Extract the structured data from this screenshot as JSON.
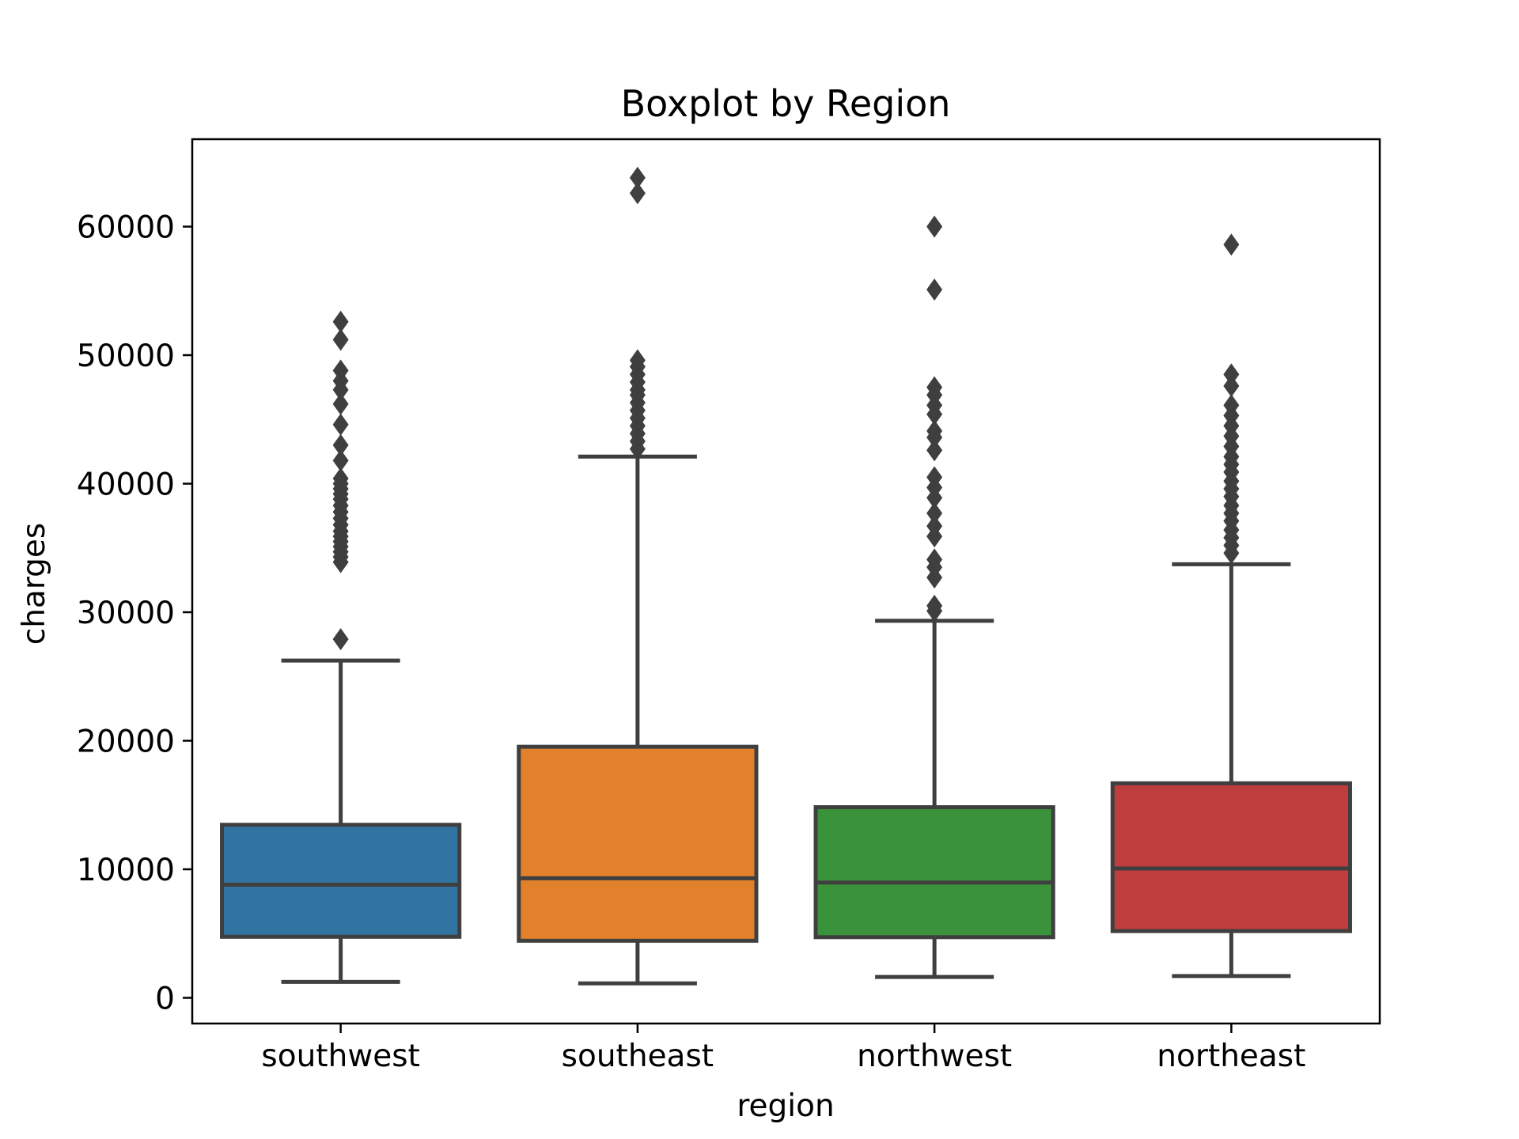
{
  "chart_data": {
    "type": "box",
    "title": "Boxplot by Region",
    "xlabel": "region",
    "ylabel": "charges",
    "ylim": [
      -2000,
      66800
    ],
    "yticks": [
      0,
      10000,
      20000,
      30000,
      40000,
      50000,
      60000
    ],
    "ytick_labels": [
      "0",
      "10000",
      "20000",
      "30000",
      "40000",
      "50000",
      "60000"
    ],
    "grid": false,
    "categories": [
      "southwest",
      "southeast",
      "northwest",
      "northeast"
    ],
    "colors": [
      "#3274a1",
      "#e1812c",
      "#3a923a",
      "#c03d3e"
    ],
    "edge_color": "#3f3f3f",
    "boxes": [
      {
        "name": "southwest",
        "whisker_low": 1240,
        "q1": 4750,
        "median": 8800,
        "q3": 13460,
        "whisker_high": 26240,
        "outliers": [
          27900,
          33900,
          34300,
          34700,
          35100,
          35500,
          35900,
          36300,
          36800,
          37300,
          37800,
          38300,
          38800,
          39200,
          39600,
          40000,
          40400,
          41800,
          43000,
          44600,
          46200,
          47300,
          48000,
          48800,
          51200,
          52600
        ]
      },
      {
        "name": "southeast",
        "whisker_low": 1120,
        "q1": 4440,
        "median": 9300,
        "q3": 19530,
        "whisker_high": 42110,
        "outliers": [
          42700,
          43300,
          43900,
          44500,
          45100,
          45700,
          46300,
          46900,
          47300,
          47900,
          48500,
          49100,
          49600,
          62600,
          63800
        ]
      },
      {
        "name": "northwest",
        "whisker_low": 1620,
        "q1": 4720,
        "median": 8970,
        "q3": 14830,
        "whisker_high": 29330,
        "outliers": [
          30100,
          30500,
          32700,
          33500,
          34100,
          35900,
          36700,
          37700,
          38900,
          39700,
          40500,
          42600,
          43600,
          44100,
          45400,
          46100,
          46900,
          47500,
          55100,
          60000
        ]
      },
      {
        "name": "northeast",
        "whisker_low": 1690,
        "q1": 5190,
        "median": 10060,
        "q3": 16690,
        "whisker_high": 33730,
        "outliers": [
          34600,
          35200,
          35800,
          36400,
          37100,
          37700,
          38300,
          39000,
          39600,
          40200,
          40900,
          41500,
          42100,
          42900,
          43700,
          44500,
          45300,
          46100,
          47600,
          48500,
          58600
        ]
      }
    ]
  }
}
